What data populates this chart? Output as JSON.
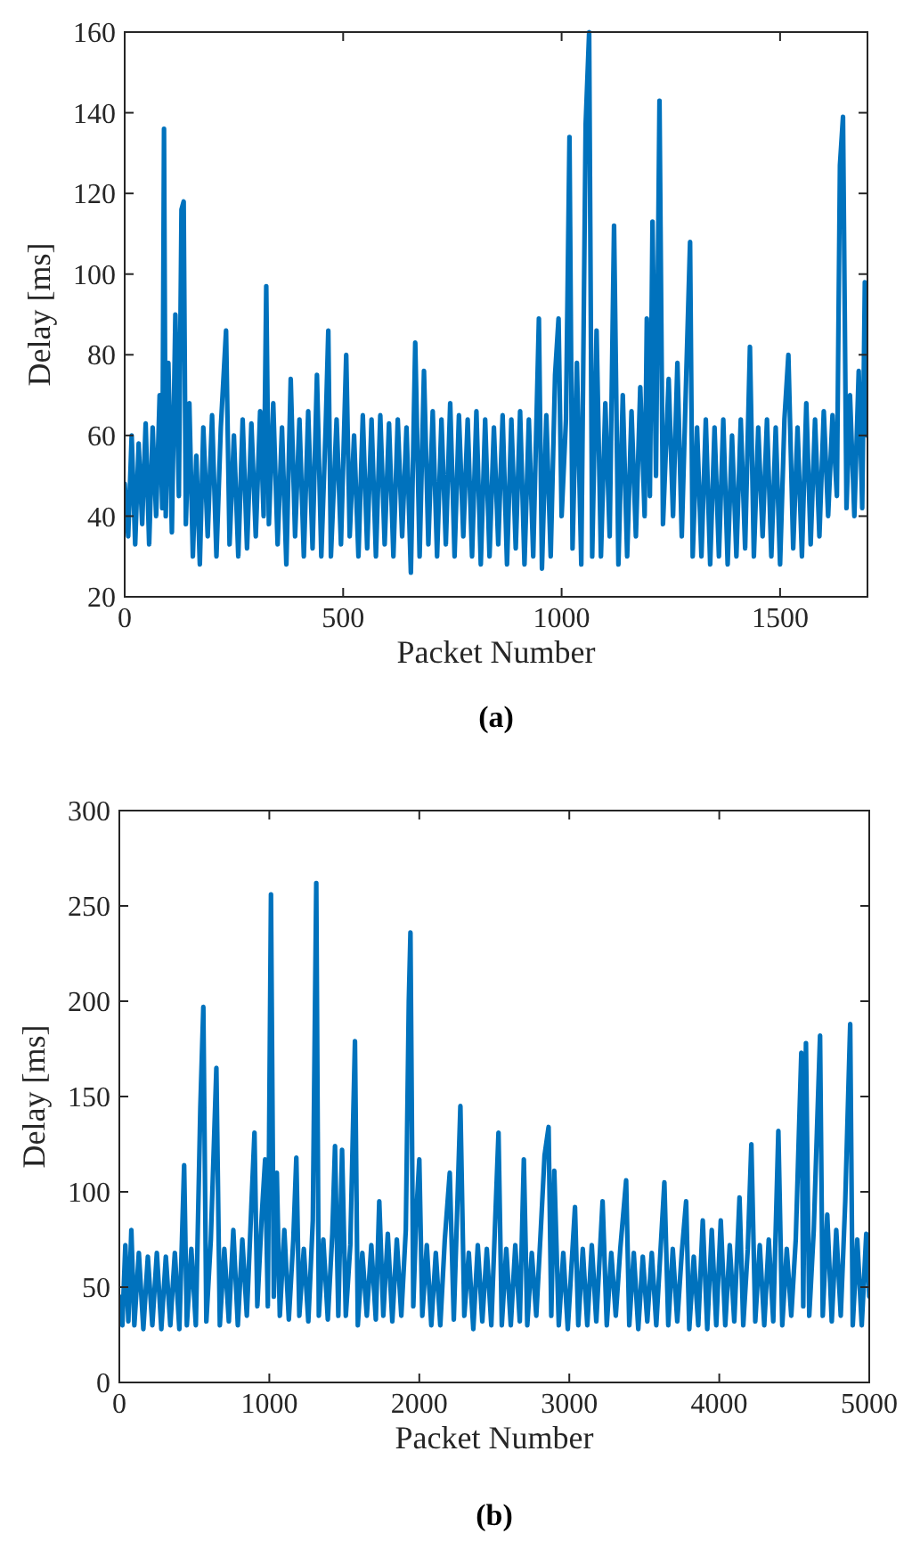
{
  "chart_data": [
    {
      "type": "line",
      "xlabel": "Packet Number",
      "ylabel": "Delay [ms]",
      "annotations": [
        "(a)"
      ],
      "xlim": [
        0,
        1700
      ],
      "xticks": [
        0,
        500,
        1000,
        1500
      ],
      "ylim": [
        20,
        160
      ],
      "yticks": [
        20,
        40,
        60,
        80,
        100,
        120,
        140,
        160
      ],
      "line_style": "solid",
      "marker": "none",
      "grid": false,
      "x": [
        0,
        8,
        16,
        24,
        32,
        40,
        48,
        56,
        64,
        72,
        80,
        86,
        90,
        94,
        100,
        108,
        116,
        124,
        130,
        135,
        140,
        148,
        156,
        164,
        172,
        180,
        190,
        200,
        210,
        220,
        232,
        240,
        250,
        260,
        270,
        280,
        290,
        300,
        310,
        318,
        324,
        330,
        340,
        350,
        360,
        370,
        380,
        390,
        400,
        410,
        420,
        430,
        440,
        450,
        460,
        466,
        472,
        485,
        495,
        507,
        515,
        525,
        535,
        545,
        555,
        565,
        575,
        585,
        595,
        605,
        615,
        625,
        635,
        645,
        655,
        665,
        675,
        685,
        695,
        705,
        715,
        725,
        735,
        745,
        755,
        765,
        775,
        785,
        795,
        805,
        815,
        825,
        835,
        845,
        855,
        865,
        875,
        885,
        895,
        905,
        915,
        925,
        935,
        948,
        955,
        965,
        975,
        985,
        993,
        1000,
        1010,
        1018,
        1025,
        1035,
        1045,
        1055,
        1063,
        1070,
        1080,
        1090,
        1100,
        1110,
        1120,
        1130,
        1140,
        1150,
        1160,
        1170,
        1180,
        1190,
        1195,
        1202,
        1208,
        1216,
        1224,
        1232,
        1245,
        1255,
        1265,
        1275,
        1285,
        1294,
        1300,
        1310,
        1320,
        1330,
        1340,
        1350,
        1360,
        1370,
        1380,
        1390,
        1400,
        1410,
        1420,
        1431,
        1440,
        1450,
        1460,
        1470,
        1480,
        1490,
        1500,
        1510,
        1519,
        1530,
        1540,
        1550,
        1560,
        1570,
        1580,
        1590,
        1600,
        1610,
        1620,
        1630,
        1637,
        1644,
        1652,
        1660,
        1670,
        1680,
        1688,
        1694,
        1700
      ],
      "series": [
        {
          "color": "#0072bd",
          "values": [
            48,
            35,
            60,
            33,
            58,
            38,
            63,
            33,
            62,
            40,
            70,
            42,
            136,
            40,
            78,
            36,
            90,
            45,
            116,
            118,
            38,
            68,
            30,
            55,
            28,
            62,
            35,
            65,
            30,
            62,
            86,
            33,
            60,
            30,
            64,
            32,
            63,
            35,
            66,
            40,
            97,
            38,
            68,
            33,
            62,
            28,
            74,
            35,
            64,
            30,
            66,
            32,
            75,
            30,
            62,
            86,
            30,
            64,
            33,
            80,
            35,
            60,
            30,
            65,
            32,
            64,
            30,
            65,
            33,
            63,
            30,
            64,
            35,
            62,
            26,
            83,
            30,
            76,
            33,
            66,
            30,
            64,
            33,
            68,
            30,
            65,
            35,
            64,
            30,
            66,
            28,
            64,
            30,
            62,
            33,
            65,
            28,
            64,
            32,
            66,
            28,
            64,
            30,
            89,
            27,
            65,
            30,
            75,
            89,
            40,
            64,
            134,
            32,
            78,
            28,
            137,
            160,
            30,
            86,
            30,
            68,
            35,
            112,
            28,
            70,
            30,
            66,
            35,
            72,
            40,
            89,
            45,
            113,
            50,
            143,
            38,
            74,
            40,
            78,
            35,
            74,
            108,
            30,
            62,
            30,
            64,
            28,
            62,
            30,
            64,
            28,
            60,
            30,
            64,
            32,
            82,
            30,
            62,
            35,
            64,
            30,
            62,
            28,
            64,
            80,
            32,
            62,
            30,
            68,
            33,
            64,
            35,
            66,
            40,
            65,
            45,
            127,
            139,
            42,
            70,
            40,
            76,
            42,
            98,
            60
          ]
        }
      ]
    },
    {
      "type": "line",
      "xlabel": "Packet Number",
      "ylabel": "Delay [ms]",
      "annotations": [
        "(b)"
      ],
      "xlim": [
        0,
        5000
      ],
      "xticks": [
        0,
        1000,
        2000,
        3000,
        4000,
        5000
      ],
      "ylim": [
        0,
        300
      ],
      "yticks": [
        0,
        50,
        100,
        150,
        200,
        250,
        300
      ],
      "line_style": "solid",
      "marker": "none",
      "grid": false,
      "x": [
        0,
        20,
        40,
        60,
        80,
        100,
        130,
        160,
        190,
        220,
        250,
        280,
        310,
        340,
        370,
        400,
        432,
        450,
        480,
        510,
        540,
        560,
        580,
        610,
        647,
        670,
        700,
        730,
        760,
        790,
        820,
        850,
        880,
        901,
        920,
        950,
        972,
        990,
        1011,
        1030,
        1050,
        1070,
        1100,
        1130,
        1160,
        1180,
        1200,
        1230,
        1260,
        1290,
        1313,
        1330,
        1360,
        1390,
        1420,
        1438,
        1460,
        1485,
        1510,
        1540,
        1571,
        1590,
        1620,
        1650,
        1680,
        1710,
        1733,
        1760,
        1790,
        1820,
        1850,
        1880,
        1910,
        1930,
        1941,
        1960,
        1980,
        2000,
        2020,
        2050,
        2080,
        2110,
        2140,
        2170,
        2203,
        2230,
        2274,
        2300,
        2330,
        2360,
        2390,
        2420,
        2450,
        2480,
        2528,
        2550,
        2580,
        2610,
        2640,
        2670,
        2697,
        2720,
        2750,
        2780,
        2810,
        2835,
        2862,
        2880,
        2900,
        2930,
        2960,
        2990,
        3038,
        3060,
        3090,
        3120,
        3150,
        3180,
        3222,
        3250,
        3280,
        3310,
        3340,
        3379,
        3400,
        3430,
        3460,
        3490,
        3520,
        3550,
        3580,
        3634,
        3660,
        3690,
        3720,
        3750,
        3779,
        3800,
        3830,
        3860,
        3890,
        3920,
        3950,
        3980,
        4010,
        4040,
        4070,
        4100,
        4135,
        4160,
        4190,
        4214,
        4240,
        4270,
        4300,
        4330,
        4360,
        4394,
        4420,
        4450,
        4480,
        4510,
        4547,
        4560,
        4578,
        4600,
        4630,
        4672,
        4690,
        4720,
        4750,
        4780,
        4810,
        4840,
        4873,
        4890,
        4920,
        4950,
        4980,
        5000
      ],
      "series": [
        {
          "color": "#0072bd",
          "values": [
            45,
            30,
            72,
            32,
            80,
            30,
            68,
            28,
            66,
            30,
            68,
            28,
            66,
            30,
            68,
            28,
            114,
            30,
            70,
            30,
            144,
            197,
            32,
            75,
            165,
            30,
            70,
            32,
            80,
            30,
            75,
            35,
            92,
            131,
            40,
            88,
            117,
            40,
            256,
            45,
            110,
            35,
            80,
            33,
            75,
            118,
            35,
            70,
            32,
            85,
            262,
            35,
            75,
            33,
            78,
            124,
            35,
            122,
            35,
            72,
            179,
            30,
            68,
            35,
            72,
            33,
            95,
            35,
            78,
            32,
            75,
            35,
            80,
            200,
            236,
            40,
            88,
            117,
            35,
            72,
            30,
            68,
            30,
            75,
            110,
            33,
            145,
            35,
            68,
            28,
            72,
            32,
            70,
            30,
            131,
            30,
            70,
            30,
            72,
            32,
            117,
            30,
            68,
            35,
            80,
            119,
            134,
            35,
            111,
            30,
            68,
            28,
            92,
            30,
            70,
            30,
            72,
            32,
            95,
            30,
            68,
            35,
            70,
            106,
            30,
            68,
            28,
            66,
            32,
            68,
            30,
            105,
            30,
            70,
            32,
            68,
            95,
            28,
            66,
            30,
            85,
            28,
            80,
            30,
            85,
            30,
            72,
            32,
            97,
            30,
            70,
            125,
            32,
            72,
            30,
            75,
            32,
            132,
            30,
            70,
            35,
            75,
            173,
            40,
            178,
            35,
            80,
            182,
            35,
            88,
            32,
            80,
            35,
            95,
            188,
            30,
            75,
            30,
            78,
            45
          ]
        }
      ]
    }
  ]
}
